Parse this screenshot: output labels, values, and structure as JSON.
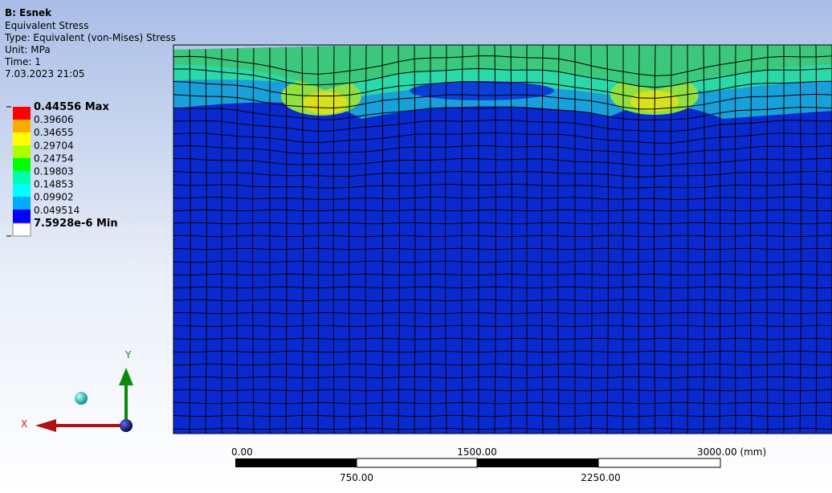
{
  "header": {
    "title": "B: Esnek",
    "lines": [
      "Equivalent Stress",
      "Type: Equivalent (von-Mises) Stress",
      "Unit: MPa",
      "Time: 1",
      "7.03.2023 21:05"
    ]
  },
  "legend": {
    "labels": [
      "0.44556 Max",
      "0.39606",
      "0.34655",
      "0.29704",
      "0.24754",
      "0.19803",
      "0.14853",
      "0.09902",
      "0.049514",
      "7.5928e-6 Min"
    ]
  },
  "triad": {
    "x_label": "X",
    "y_label": "Y"
  },
  "scale_bar": {
    "top_labels": [
      "0.00",
      "1500.00",
      "3000.00 (mm)"
    ],
    "bottom_labels": [
      "750.00",
      "2250.00"
    ]
  }
}
